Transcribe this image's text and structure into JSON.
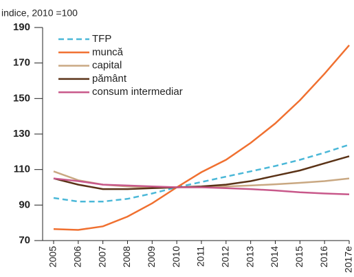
{
  "chart_data": {
    "type": "line",
    "subtitle": "indice, 2010 =100",
    "categories": [
      "2005",
      "2006",
      "2007",
      "2008",
      "2009",
      "2010",
      "2011",
      "2012",
      "2013",
      "2014",
      "2015",
      "2016",
      "2017e"
    ],
    "series": [
      {
        "name": "TFP",
        "color": "#4bb8d8",
        "dashed": true,
        "values": [
          94,
          92,
          92,
          93.5,
          96.5,
          100,
          103,
          106,
          109,
          112,
          115.5,
          119.5,
          124
        ]
      },
      {
        "name": "muncă",
        "color": "#f07030",
        "values": [
          76.5,
          76,
          78,
          83.5,
          91,
          100,
          108.5,
          115.5,
          125,
          136,
          149,
          164,
          180
        ]
      },
      {
        "name": "capital",
        "color": "#c9a882",
        "values": [
          109,
          104,
          101.5,
          100.5,
          100,
          100,
          100,
          100.5,
          101,
          101.7,
          102.5,
          103.5,
          105
        ]
      },
      {
        "name": "pământ",
        "color": "#5a3216",
        "values": [
          105,
          101.5,
          99,
          99,
          99.5,
          100,
          100.5,
          101.5,
          103.5,
          106.5,
          109.5,
          113.5,
          117.5
        ]
      },
      {
        "name": "consum intermediar",
        "color": "#c8588a",
        "values": [
          105,
          103.5,
          101.5,
          101,
          100.5,
          100,
          100,
          99.5,
          99,
          98.2,
          97.2,
          96.5,
          96
        ]
      }
    ],
    "ylim": [
      70,
      190
    ],
    "yticks": [
      70,
      90,
      110,
      130,
      150,
      170,
      190
    ],
    "legend": "upper left"
  }
}
